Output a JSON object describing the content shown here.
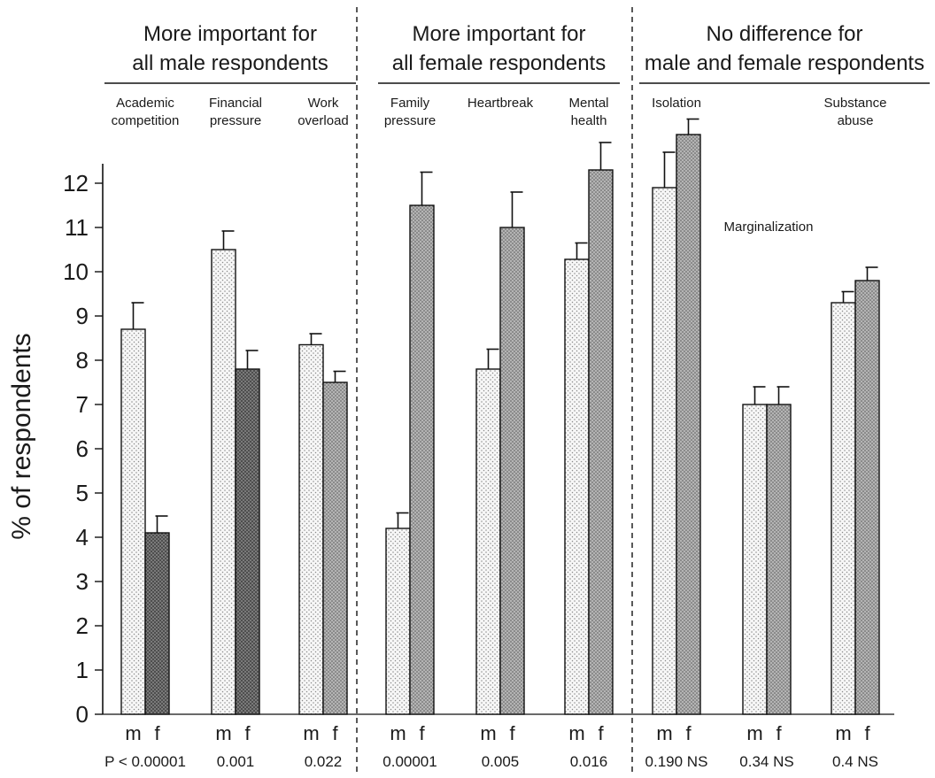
{
  "chart_data": {
    "type": "bar",
    "ylabel": "% of respondents",
    "ylim": [
      0,
      12
    ],
    "yticks": [
      0,
      1,
      2,
      3,
      4,
      5,
      6,
      7,
      8,
      9,
      10,
      11,
      12
    ],
    "grid": false,
    "legend": "none",
    "series_names": [
      "m",
      "f"
    ],
    "colors": {
      "m": "#f4f4f4",
      "f_default": "#a9a9a9",
      "f_dark": "#6c6c6c",
      "stroke": "#111111"
    },
    "groups": [
      {
        "heading": [
          "More important for",
          "all male respondents"
        ],
        "start": 0,
        "end": 2
      },
      {
        "heading": [
          "More important for",
          "all female respondents"
        ],
        "start": 3,
        "end": 5
      },
      {
        "heading": [
          "No difference for",
          "male and female respondents"
        ],
        "start": 6,
        "end": 8
      }
    ],
    "categories": [
      {
        "label": [
          "Academic",
          "competition"
        ],
        "m": 8.7,
        "m_err": 0.6,
        "f": 4.1,
        "f_err": 0.38,
        "f_dark": true,
        "p": "P < 0.00001"
      },
      {
        "label": [
          "Financial",
          "pressure"
        ],
        "m": 10.5,
        "m_err": 0.42,
        "f": 7.8,
        "f_err": 0.42,
        "f_dark": true,
        "p": "0.001"
      },
      {
        "label": [
          "Work",
          "overload"
        ],
        "m": 8.35,
        "m_err": 0.25,
        "f": 7.5,
        "f_err": 0.25,
        "f_dark": false,
        "p": "0.022"
      },
      {
        "label": [
          "Family",
          "pressure"
        ],
        "m": 4.2,
        "m_err": 0.35,
        "f": 11.5,
        "f_err": 0.75,
        "f_dark": false,
        "p": "0.00001"
      },
      {
        "label": [
          "Heartbreak"
        ],
        "m": 7.8,
        "m_err": 0.45,
        "f": 11.0,
        "f_err": 0.8,
        "f_dark": false,
        "p": "0.005"
      },
      {
        "label": [
          "Mental",
          "health"
        ],
        "m": 10.28,
        "m_err": 0.37,
        "f": 12.3,
        "f_err": 0.62,
        "f_dark": false,
        "p": "0.016"
      },
      {
        "label": [
          "Isolation"
        ],
        "m": 11.9,
        "m_err": 0.8,
        "f": 13.1,
        "f_err": 0.35,
        "f_dark": false,
        "p": "0.190 NS"
      },
      {
        "label": [
          "Marginalization"
        ],
        "m": 7.0,
        "m_err": 0.4,
        "f": 7.0,
        "f_err": 0.4,
        "f_dark": false,
        "p": "0.34 NS"
      },
      {
        "label": [
          "Substance",
          "abuse"
        ],
        "m": 9.3,
        "m_err": 0.25,
        "f": 9.8,
        "f_err": 0.3,
        "f_dark": false,
        "p": "0.4 NS"
      }
    ]
  }
}
